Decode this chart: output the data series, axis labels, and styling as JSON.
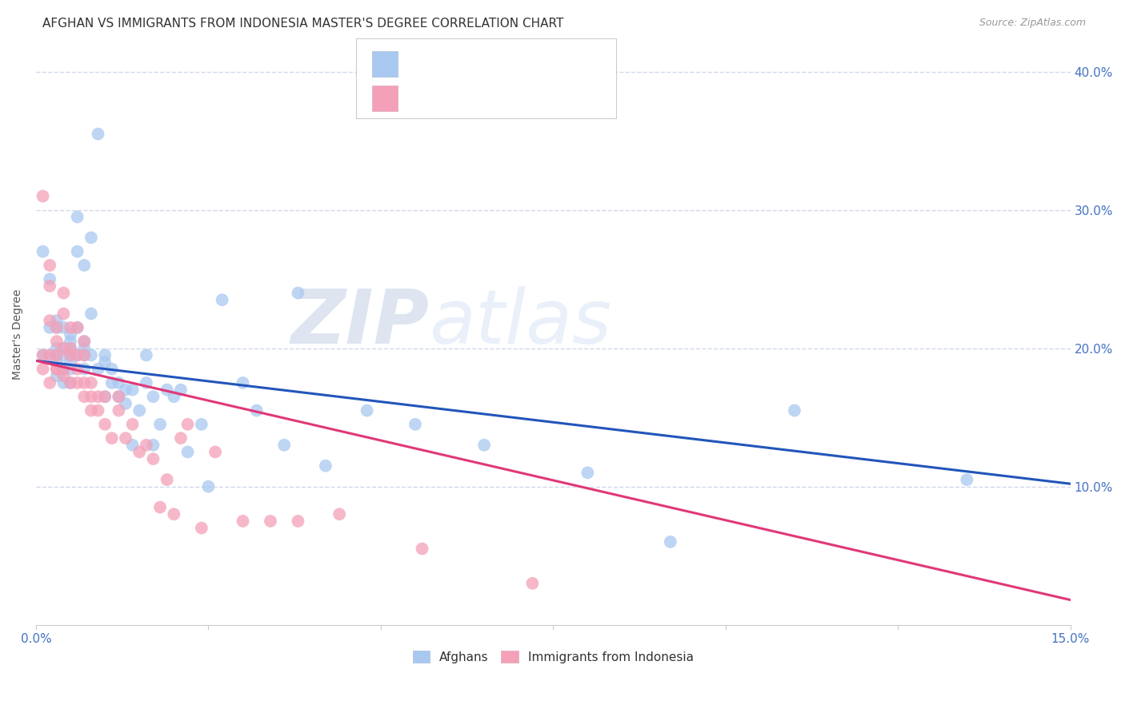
{
  "title": "AFGHAN VS IMMIGRANTS FROM INDONESIA MASTER'S DEGREE CORRELATION CHART",
  "source": "Source: ZipAtlas.com",
  "ylabel": "Master's Degree",
  "yaxis_ticks": [
    0.1,
    0.2,
    0.3,
    0.4
  ],
  "yaxis_labels": [
    "10.0%",
    "20.0%",
    "30.0%",
    "40.0%"
  ],
  "xmin": 0.0,
  "xmax": 0.15,
  "ymin": 0.0,
  "ymax": 0.42,
  "blue_color": "#a8c8f0",
  "pink_color": "#f4a0b8",
  "blue_line_color": "#2255bb",
  "pink_line_color": "#e03878",
  "watermark_zip": "ZIP",
  "watermark_atlas": "atlas",
  "legend_label1": "Afghans",
  "legend_label2": "Immigrants from Indonesia",
  "legend_text_color": "#4472c4",
  "title_fontsize": 11,
  "tick_color": "#4472c4",
  "grid_color": "#d0d8e8",
  "background_color": "#ffffff",
  "blue_scatter_x": [
    0.001,
    0.001,
    0.002,
    0.002,
    0.002,
    0.003,
    0.003,
    0.003,
    0.003,
    0.003,
    0.003,
    0.004,
    0.004,
    0.004,
    0.004,
    0.004,
    0.004,
    0.005,
    0.005,
    0.005,
    0.005,
    0.005,
    0.005,
    0.005,
    0.006,
    0.006,
    0.006,
    0.006,
    0.007,
    0.007,
    0.007,
    0.007,
    0.007,
    0.008,
    0.008,
    0.008,
    0.009,
    0.009,
    0.01,
    0.01,
    0.01,
    0.011,
    0.011,
    0.012,
    0.012,
    0.013,
    0.013,
    0.014,
    0.014,
    0.015,
    0.016,
    0.016,
    0.017,
    0.017,
    0.018,
    0.019,
    0.02,
    0.021,
    0.022,
    0.024,
    0.025,
    0.027,
    0.03,
    0.032,
    0.036,
    0.038,
    0.042,
    0.048,
    0.055,
    0.065,
    0.08,
    0.092,
    0.11,
    0.135
  ],
  "blue_scatter_y": [
    0.195,
    0.27,
    0.195,
    0.215,
    0.25,
    0.195,
    0.2,
    0.215,
    0.22,
    0.18,
    0.19,
    0.185,
    0.195,
    0.2,
    0.215,
    0.175,
    0.185,
    0.175,
    0.185,
    0.195,
    0.2,
    0.21,
    0.19,
    0.205,
    0.195,
    0.215,
    0.27,
    0.295,
    0.195,
    0.2,
    0.185,
    0.205,
    0.26,
    0.195,
    0.28,
    0.225,
    0.185,
    0.355,
    0.19,
    0.195,
    0.165,
    0.175,
    0.185,
    0.165,
    0.175,
    0.16,
    0.17,
    0.17,
    0.13,
    0.155,
    0.195,
    0.175,
    0.13,
    0.165,
    0.145,
    0.17,
    0.165,
    0.17,
    0.125,
    0.145,
    0.1,
    0.235,
    0.175,
    0.155,
    0.13,
    0.24,
    0.115,
    0.155,
    0.145,
    0.13,
    0.11,
    0.06,
    0.155,
    0.105
  ],
  "pink_scatter_x": [
    0.001,
    0.001,
    0.001,
    0.002,
    0.002,
    0.002,
    0.002,
    0.002,
    0.003,
    0.003,
    0.003,
    0.003,
    0.003,
    0.004,
    0.004,
    0.004,
    0.004,
    0.004,
    0.005,
    0.005,
    0.005,
    0.005,
    0.006,
    0.006,
    0.006,
    0.006,
    0.007,
    0.007,
    0.007,
    0.007,
    0.008,
    0.008,
    0.008,
    0.009,
    0.009,
    0.01,
    0.01,
    0.011,
    0.012,
    0.012,
    0.013,
    0.014,
    0.015,
    0.016,
    0.017,
    0.018,
    0.019,
    0.02,
    0.021,
    0.022,
    0.024,
    0.026,
    0.03,
    0.034,
    0.038,
    0.044,
    0.056,
    0.072
  ],
  "pink_scatter_y": [
    0.195,
    0.185,
    0.31,
    0.175,
    0.195,
    0.22,
    0.245,
    0.26,
    0.185,
    0.195,
    0.205,
    0.215,
    0.185,
    0.18,
    0.185,
    0.2,
    0.225,
    0.24,
    0.175,
    0.195,
    0.2,
    0.215,
    0.175,
    0.185,
    0.195,
    0.215,
    0.165,
    0.175,
    0.195,
    0.205,
    0.155,
    0.165,
    0.175,
    0.155,
    0.165,
    0.145,
    0.165,
    0.135,
    0.155,
    0.165,
    0.135,
    0.145,
    0.125,
    0.13,
    0.12,
    0.085,
    0.105,
    0.08,
    0.135,
    0.145,
    0.07,
    0.125,
    0.075,
    0.075,
    0.075,
    0.08,
    0.055,
    0.03
  ],
  "blue_line_x": [
    0.0,
    0.15
  ],
  "blue_line_y": [
    0.191,
    0.102
  ],
  "pink_line_x": [
    0.0,
    0.15
  ],
  "pink_line_y": [
    0.191,
    0.018
  ]
}
